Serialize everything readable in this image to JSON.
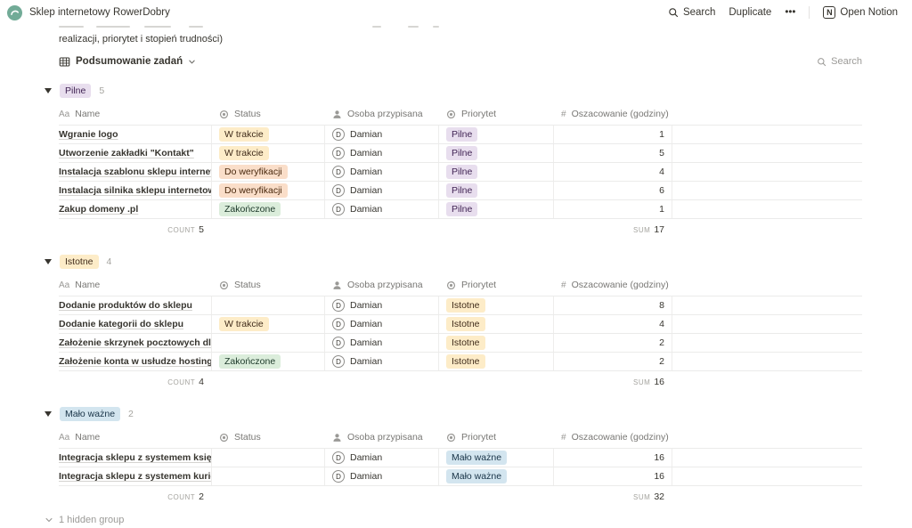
{
  "navbar": {
    "title": "Sklep internetowy RowerDobry",
    "search_label": "Search",
    "duplicate_label": "Duplicate",
    "more_label": "•••",
    "logo_letter": "N",
    "open_notion_label": "Open Notion"
  },
  "page": {
    "clipped_paragraph": "realizacji, priorytet i stopień trudności)",
    "view_title": "Podsumowanie zadań",
    "view_search_label": "Search",
    "hidden_group_label": "1 hidden group"
  },
  "table": {
    "columns": [
      {
        "label": "Name",
        "icon": "text-icon"
      },
      {
        "label": "Status",
        "icon": "status-icon"
      },
      {
        "label": "Osoba przypisana",
        "icon": "person-icon"
      },
      {
        "label": "Priorytet",
        "icon": "status-icon"
      },
      {
        "label": "Oszacowanie (godziny)",
        "icon": "number-icon"
      }
    ],
    "count_label": "COUNT",
    "sum_label": "SUM"
  },
  "status_colors": {
    "W trakcie": {
      "bg": "#fdecc8",
      "fg": "#402c1b"
    },
    "Do weryfikacji": {
      "bg": "#fadec9",
      "fg": "#49290e"
    },
    "Zakończone": {
      "bg": "#dbeddb",
      "fg": "#1c3829"
    }
  },
  "priority_colors": {
    "Pilne": {
      "bg": "#e8deee",
      "fg": "#412454"
    },
    "Istotne": {
      "bg": "#fdecc8",
      "fg": "#402c1b"
    },
    "Mało ważne": {
      "bg": "#d3e5ef",
      "fg": "#183347"
    }
  },
  "groups": [
    {
      "label": "Pilne",
      "count": "5",
      "rows": [
        {
          "name": "Wgranie logo",
          "status": "W trakcie",
          "assignee": "Damian",
          "initial": "D",
          "priority": "Pilne",
          "estimate": "1"
        },
        {
          "name": "Utworzenie zakładki \"Kontakt\"",
          "status": "W trakcie",
          "assignee": "Damian",
          "initial": "D",
          "priority": "Pilne",
          "estimate": "5"
        },
        {
          "name": "Instalacja szablonu sklepu internetowego",
          "status": "Do weryfikacji",
          "assignee": "Damian",
          "initial": "D",
          "priority": "Pilne",
          "estimate": "4"
        },
        {
          "name": "Instalacja silnika sklepu internetowego",
          "status": "Do weryfikacji",
          "assignee": "Damian",
          "initial": "D",
          "priority": "Pilne",
          "estimate": "6"
        },
        {
          "name": "Zakup domeny .pl",
          "status": "Zakończone",
          "assignee": "Damian",
          "initial": "D",
          "priority": "Pilne",
          "estimate": "1"
        }
      ],
      "footer": {
        "count": "5",
        "sum": "17"
      }
    },
    {
      "label": "Istotne",
      "count": "4",
      "rows": [
        {
          "name": "Dodanie produktów do sklepu",
          "status": "",
          "assignee": "Damian",
          "initial": "D",
          "priority": "Istotne",
          "estimate": "8"
        },
        {
          "name": "Dodanie kategorii do sklepu",
          "status": "W trakcie",
          "assignee": "Damian",
          "initial": "D",
          "priority": "Istotne",
          "estimate": "4"
        },
        {
          "name": "Założenie skrzynek pocztowych dla prac",
          "status": "",
          "assignee": "Damian",
          "initial": "D",
          "priority": "Istotne",
          "estimate": "2"
        },
        {
          "name": "Założenie konta w usłudze hostingowej",
          "status": "Zakończone",
          "assignee": "Damian",
          "initial": "D",
          "priority": "Istotne",
          "estimate": "2"
        }
      ],
      "footer": {
        "count": "4",
        "sum": "16"
      }
    },
    {
      "label": "Mało ważne",
      "count": "2",
      "rows": [
        {
          "name": "Integracja sklepu z systemem księgowym",
          "status": "",
          "assignee": "Damian",
          "initial": "D",
          "priority": "Mało ważne",
          "estimate": "16"
        },
        {
          "name": "Integracja sklepu z systemem kurierskim",
          "status": "",
          "assignee": "Damian",
          "initial": "D",
          "priority": "Mało ważne",
          "estimate": "16"
        }
      ],
      "footer": {
        "count": "2",
        "sum": "32"
      }
    }
  ]
}
